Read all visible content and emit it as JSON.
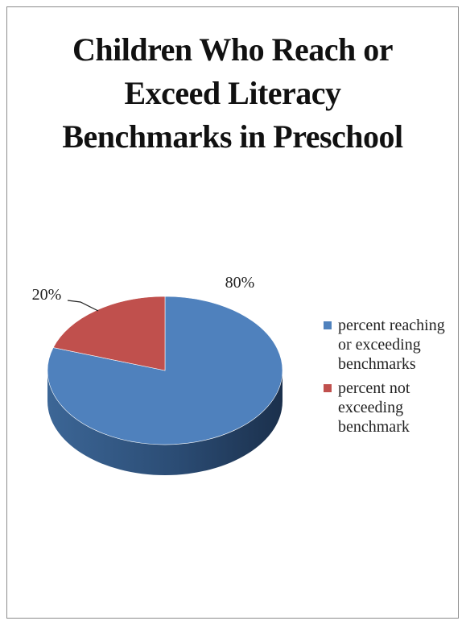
{
  "chart_data": {
    "type": "pie",
    "title_lines": [
      "Children Who Reach or",
      "Exceed Literacy",
      "Benchmarks in Preschool"
    ],
    "categories": [
      "percent reaching or exceeding benchmarks",
      "percent not exceeding benchmark"
    ],
    "legend_lines": [
      [
        "percent reaching",
        "or exceeding",
        "benchmarks"
      ],
      [
        "percent not",
        "exceeding",
        "benchmark"
      ]
    ],
    "values": [
      80,
      20
    ],
    "data_labels": [
      "80%",
      "20%"
    ],
    "colors": [
      "#4f81bd",
      "#c0504d"
    ],
    "legend_position": "right",
    "style": "3d"
  }
}
